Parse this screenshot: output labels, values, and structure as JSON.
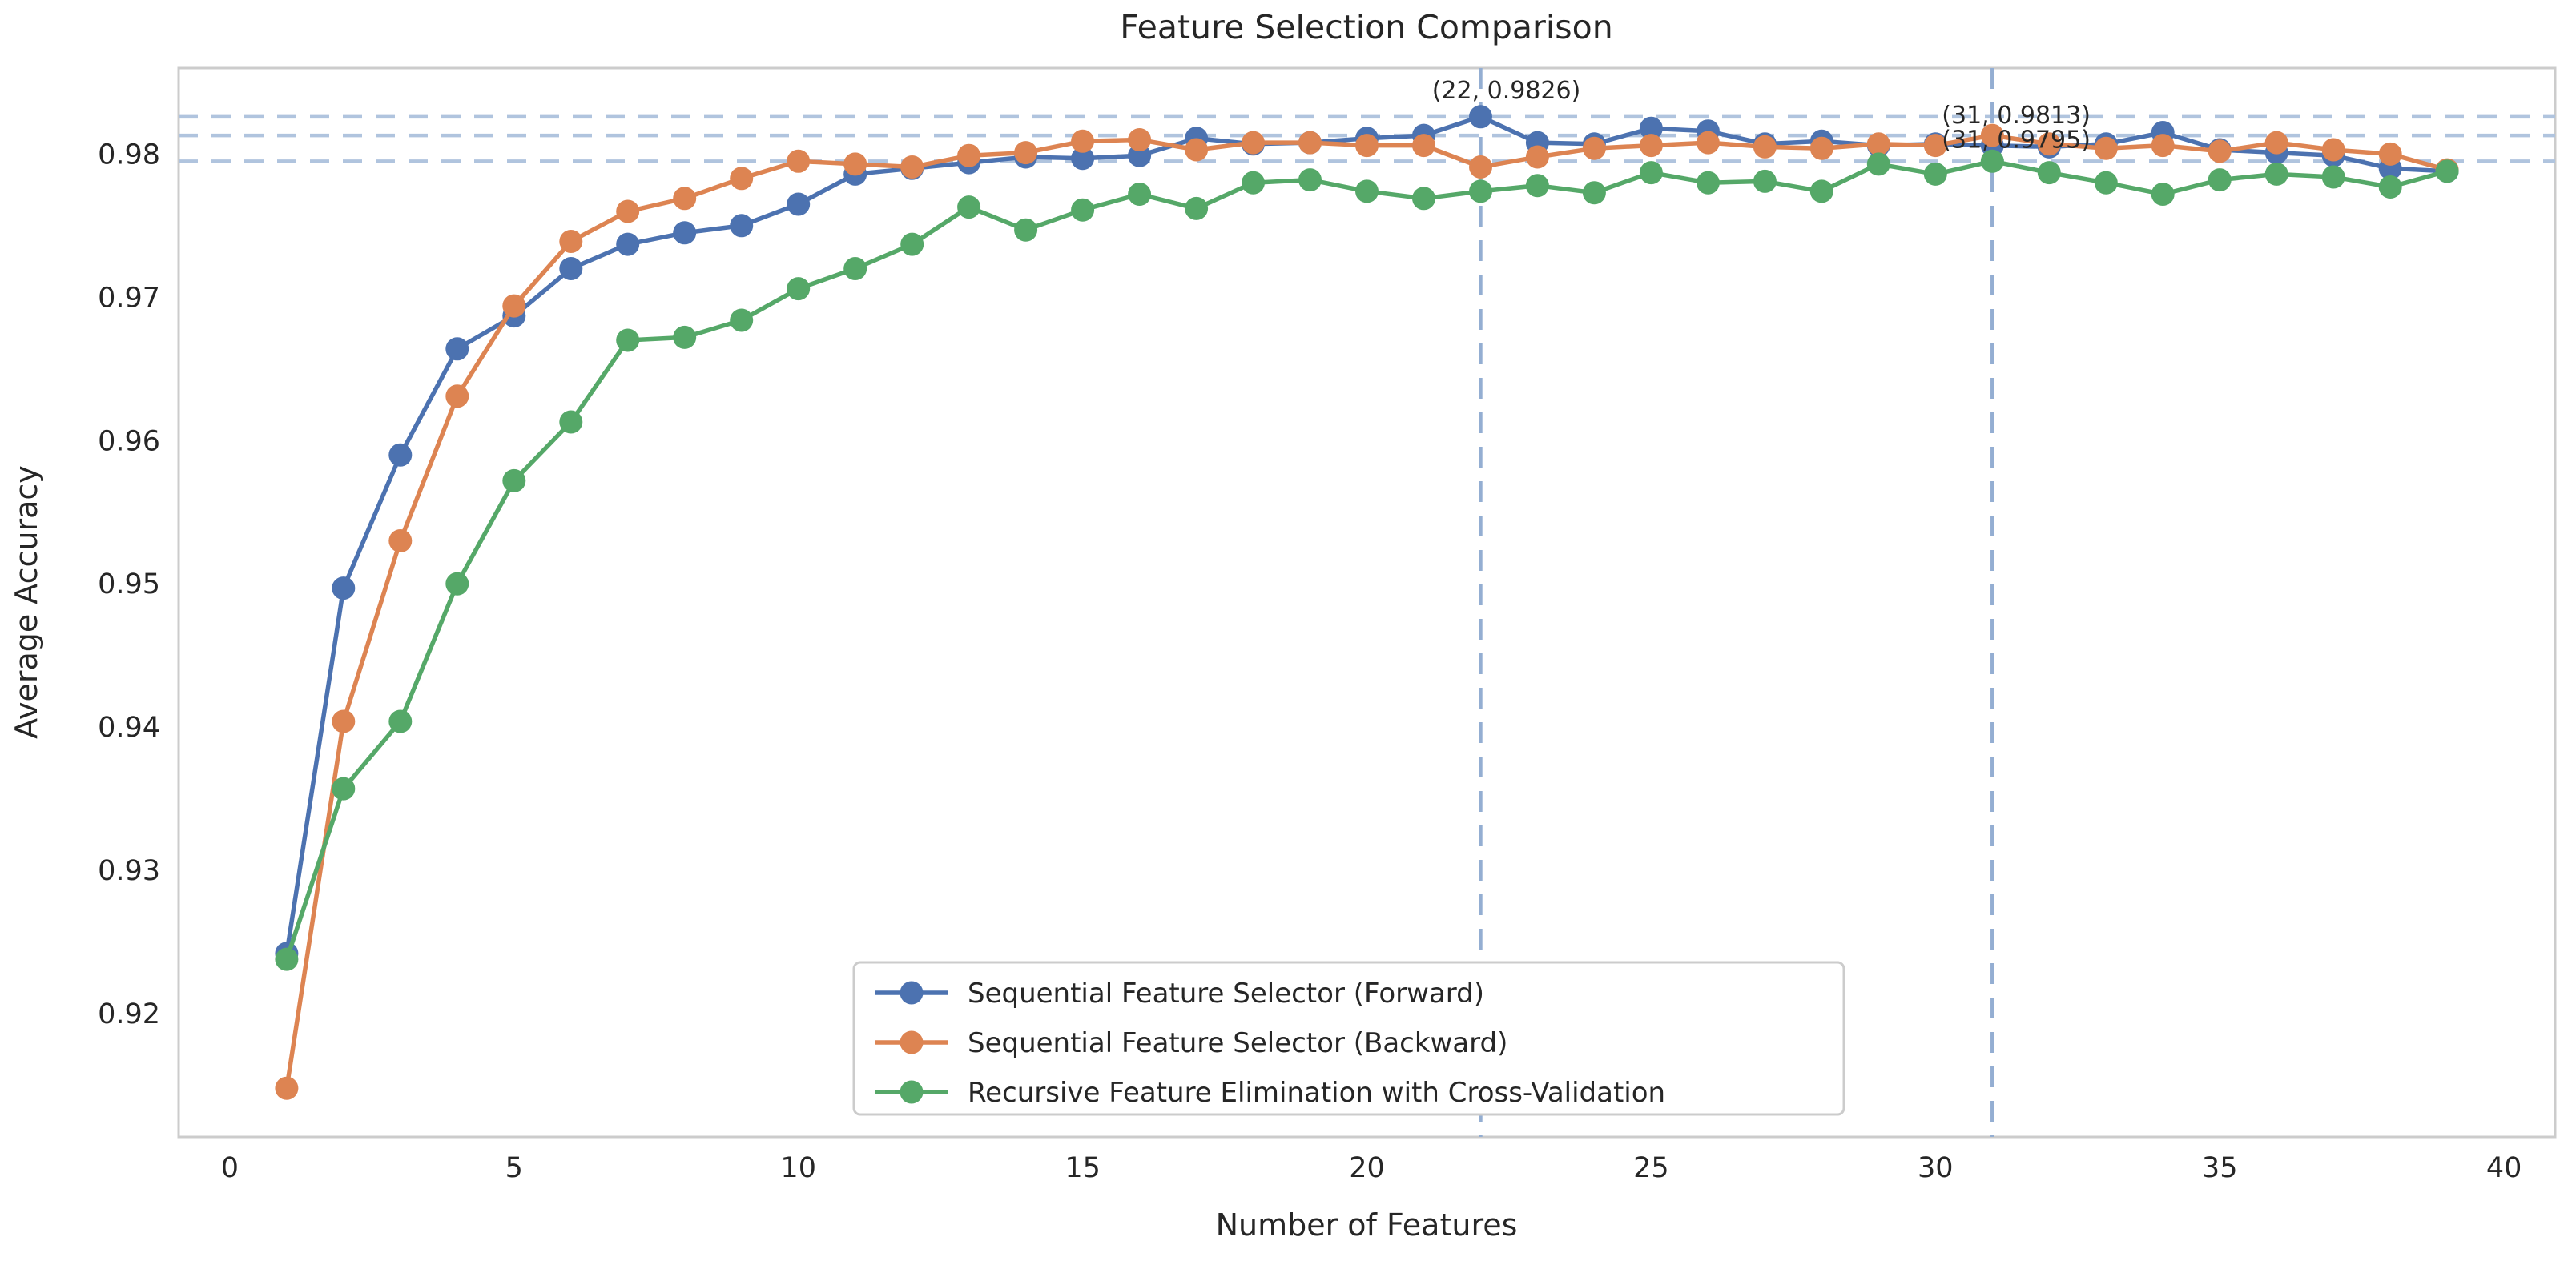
{
  "chart_data": {
    "type": "line",
    "title": "Feature Selection Comparison",
    "xlabel": "Number of Features",
    "ylabel": "Average Accuracy",
    "xlim": [
      -0.9,
      40.9
    ],
    "ylim": [
      0.9114,
      0.986
    ],
    "grid": "off",
    "legend_position": "lower center",
    "xticks": [
      "0",
      "5",
      "10",
      "15",
      "20",
      "25",
      "30",
      "35",
      "40"
    ],
    "xtick_values": [
      0,
      5,
      10,
      15,
      20,
      25,
      30,
      35,
      40
    ],
    "yticks": [
      "0.92",
      "0.93",
      "0.94",
      "0.95",
      "0.96",
      "0.97",
      "0.98"
    ],
    "ytick_values": [
      0.92,
      0.93,
      0.94,
      0.95,
      0.96,
      0.97,
      0.98
    ],
    "x": [
      1,
      2,
      3,
      4,
      5,
      6,
      7,
      8,
      9,
      10,
      11,
      12,
      13,
      14,
      15,
      16,
      17,
      18,
      19,
      20,
      21,
      22,
      23,
      24,
      25,
      26,
      27,
      28,
      29,
      30,
      31,
      32,
      33,
      34,
      35,
      36,
      37,
      38,
      39
    ],
    "series": [
      {
        "name": "Sequential Feature Selector (Forward)",
        "color": "#4C72B0",
        "values": [
          0.9242,
          0.9497,
          0.959,
          0.9664,
          0.9687,
          0.972,
          0.9737,
          0.9745,
          0.975,
          0.9765,
          0.9786,
          0.979,
          0.9794,
          0.9798,
          0.9797,
          0.9799,
          0.9811,
          0.9807,
          0.9808,
          0.9811,
          0.9813,
          0.9826,
          0.9808,
          0.9807,
          0.9818,
          0.9816,
          0.9807,
          0.9809,
          0.9806,
          0.9807,
          0.9806,
          0.9805,
          0.9807,
          0.9815,
          0.9803,
          0.9801,
          0.9799,
          0.979,
          0.9788
        ]
      },
      {
        "name": "Sequential Feature Selector (Backward)",
        "color": "#DD8452",
        "values": [
          0.9148,
          0.9404,
          0.953,
          0.9631,
          0.9694,
          0.9739,
          0.976,
          0.9769,
          0.9783,
          0.9795,
          0.9793,
          0.9791,
          0.9799,
          0.9801,
          0.9809,
          0.981,
          0.9803,
          0.9808,
          0.9808,
          0.9806,
          0.9806,
          0.9791,
          0.9798,
          0.9804,
          0.9806,
          0.9808,
          0.9805,
          0.9804,
          0.9807,
          0.9806,
          0.9813,
          0.9807,
          0.9804,
          0.9806,
          0.9802,
          0.9808,
          0.9803,
          0.98,
          0.9789
        ]
      },
      {
        "name": "Recursive Feature Elimination with Cross-Validation",
        "color": "#55A868",
        "values": [
          0.9238,
          0.9357,
          0.9404,
          0.95,
          0.9572,
          0.9613,
          0.967,
          0.9672,
          0.9684,
          0.9706,
          0.972,
          0.9737,
          0.9763,
          0.9747,
          0.9761,
          0.9772,
          0.9762,
          0.978,
          0.9782,
          0.9774,
          0.9769,
          0.9774,
          0.9778,
          0.9773,
          0.9787,
          0.978,
          0.9781,
          0.9774,
          0.9793,
          0.9786,
          0.9795,
          0.9787,
          0.978,
          0.9772,
          0.9782,
          0.9786,
          0.9784,
          0.9777,
          0.9788
        ]
      }
    ],
    "annotations": [
      {
        "text": "(22, 0.9826)",
        "x": 22,
        "y": 0.9826
      },
      {
        "text": "(31, 0.9813)",
        "x": 31,
        "y": 0.9813
      },
      {
        "text": "(31, 0.9795)",
        "x": 31,
        "y": 0.9795
      }
    ],
    "reference_lines": {
      "horizontal_values": [
        0.9826,
        0.9813,
        0.9795
      ],
      "vertical_values": [
        22,
        31
      ],
      "horizontal_color": "#b0c4de",
      "vertical_color": "#94aed2"
    },
    "colors": {
      "text": "#262626",
      "annotation_text": "#1a1a1a",
      "spine": "#cccccc",
      "background": "#ffffff",
      "legend_border": "#cccccc"
    }
  }
}
